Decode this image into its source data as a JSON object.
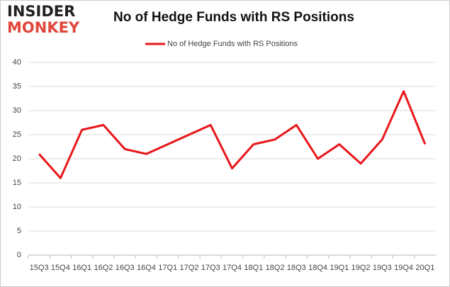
{
  "logo": {
    "top": "INSIDER",
    "bottom": "MONKEY"
  },
  "chart_data": {
    "type": "line",
    "title": "No of Hedge Funds with RS Positions",
    "categories": [
      "15Q3",
      "15Q4",
      "16Q1",
      "16Q2",
      "16Q3",
      "16Q4",
      "17Q1",
      "17Q2",
      "17Q3",
      "17Q4",
      "18Q1",
      "18Q2",
      "18Q3",
      "18Q4",
      "19Q1",
      "19Q2",
      "19Q3",
      "19Q4",
      "20Q1"
    ],
    "series": [
      {
        "name": "No of Hedge Funds with RS Positions",
        "color": "#e8161a",
        "values": [
          21,
          16,
          26,
          27,
          22,
          21,
          23,
          25,
          27,
          18,
          23,
          24,
          27,
          20,
          23,
          19,
          24,
          34,
          23
        ]
      }
    ],
    "ylim": [
      0,
      40
    ],
    "yticks": [
      0,
      5,
      10,
      15,
      20,
      25,
      30,
      35,
      40
    ],
    "grid": true,
    "legend": "top"
  }
}
